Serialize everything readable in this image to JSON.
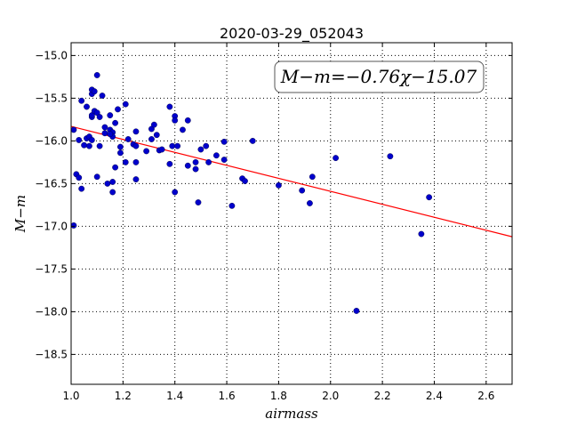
{
  "chart_data": {
    "type": "scatter",
    "title": "2020-03-29_052043",
    "xlabel": "airmass",
    "ylabel": "M−m",
    "xlim": [
      1.0,
      2.7
    ],
    "ylim": [
      -18.85,
      -14.85
    ],
    "y_inverted": true,
    "grid": true,
    "x_ticks": [
      1.0,
      1.2,
      1.4,
      1.6,
      1.8,
      2.0,
      2.2,
      2.4,
      2.6
    ],
    "x_tick_labels": [
      "1.0",
      "1.2",
      "1.4",
      "1.6",
      "1.8",
      "2.0",
      "2.2",
      "2.4",
      "2.6"
    ],
    "y_ticks": [
      -15.0,
      -15.5,
      -16.0,
      -16.5,
      -17.0,
      -17.5,
      -18.0,
      -18.5
    ],
    "y_tick_labels": [
      "−15.0",
      "−15.5",
      "−16.0",
      "−16.5",
      "−17.0",
      "−17.5",
      "−18.0",
      "−18.5"
    ],
    "annotation": "M−m=−0.76χ−15.07",
    "fit": {
      "slope": -0.76,
      "intercept": -15.07,
      "x_range": [
        1.0,
        2.7
      ],
      "color": "#ff0000"
    },
    "marker_color": "#0000cc",
    "x": [
      1.01,
      1.01,
      1.02,
      1.03,
      1.04,
      1.04,
      1.03,
      1.05,
      1.06,
      1.06,
      1.07,
      1.07,
      1.08,
      1.08,
      1.08,
      1.08,
      1.08,
      1.09,
      1.09,
      1.1,
      1.1,
      1.1,
      1.11,
      1.11,
      1.12,
      1.13,
      1.13,
      1.14,
      1.15,
      1.15,
      1.16,
      1.16,
      1.16,
      1.16,
      1.15,
      1.17,
      1.17,
      1.18,
      1.19,
      1.19,
      1.21,
      1.21,
      1.22,
      1.24,
      1.25,
      1.25,
      1.25,
      1.25,
      1.29,
      1.31,
      1.31,
      1.32,
      1.33,
      1.34,
      1.35,
      1.38,
      1.38,
      1.39,
      1.4,
      1.4,
      1.4,
      1.41,
      1.43,
      1.45,
      1.45,
      1.48,
      1.48,
      1.49,
      1.5,
      1.52,
      1.53,
      1.56,
      1.59,
      1.59,
      1.62,
      1.66,
      1.67,
      1.7,
      1.8,
      1.89,
      1.92,
      1.93,
      2.02,
      2.1,
      2.23,
      2.35,
      2.38
    ],
    "y": [
      -15.87,
      -16.99,
      -16.39,
      -16.43,
      -16.56,
      -15.53,
      -15.99,
      -16.05,
      -15.6,
      -15.97,
      -16.06,
      -15.95,
      -15.99,
      -15.72,
      -15.7,
      -15.45,
      -15.4,
      -15.42,
      -15.65,
      -15.67,
      -16.42,
      -15.23,
      -15.72,
      -16.06,
      -15.47,
      -15.84,
      -15.91,
      -16.5,
      -15.87,
      -15.7,
      -15.9,
      -15.95,
      -16.48,
      -16.6,
      -15.92,
      -15.79,
      -16.31,
      -15.63,
      -16.07,
      -16.14,
      -16.25,
      -15.57,
      -15.98,
      -16.04,
      -15.89,
      -16.06,
      -16.45,
      -16.25,
      -16.12,
      -15.86,
      -15.98,
      -15.81,
      -15.93,
      -16.11,
      -16.1,
      -15.6,
      -16.27,
      -16.06,
      -15.71,
      -15.76,
      -16.6,
      -16.06,
      -15.87,
      -15.76,
      -16.29,
      -16.25,
      -16.33,
      -16.72,
      -16.1,
      -16.06,
      -16.25,
      -16.17,
      -16.22,
      -16.01,
      -16.76,
      -16.44,
      -16.47,
      -16.0,
      -16.52,
      -16.58,
      -16.73,
      -16.42,
      -16.2,
      -17.99,
      -16.18,
      -17.09,
      -16.66
    ]
  }
}
